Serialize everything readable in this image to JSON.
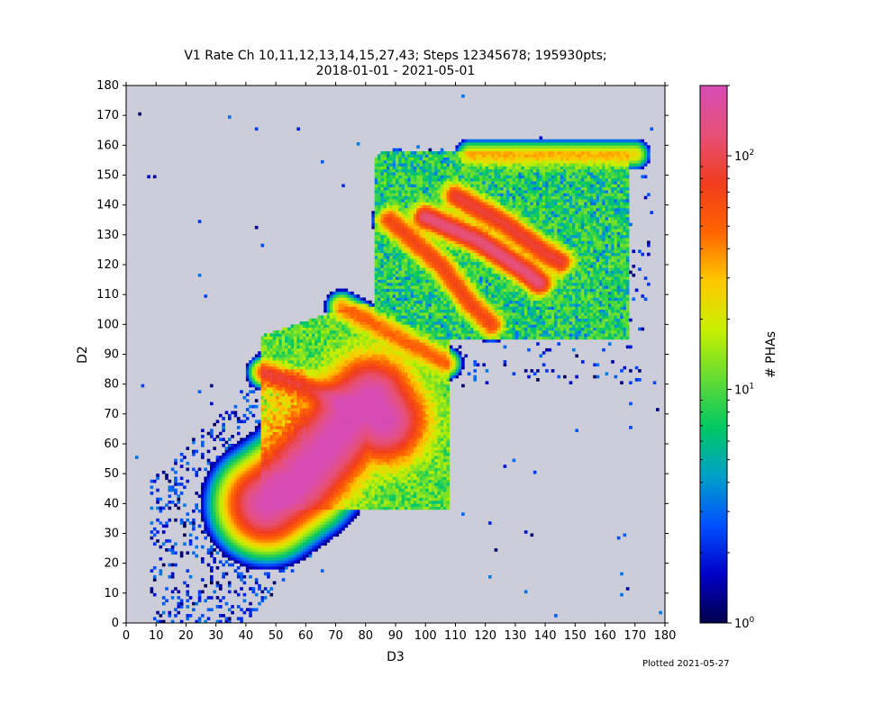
{
  "chart_data": {
    "type": "heatmap",
    "title_line1": "V1 Rate Ch 10,11,12,13,14,15,27,43; Steps 12345678; 195930pts;",
    "title_line2": "2018-01-01 - 2021-05-01",
    "xlabel": "D3",
    "ylabel": "D2",
    "xlim": [
      0,
      180
    ],
    "ylim": [
      0,
      180
    ],
    "xticks": [
      0,
      10,
      20,
      30,
      40,
      50,
      60,
      70,
      80,
      90,
      100,
      110,
      120,
      130,
      140,
      150,
      160,
      170,
      180
    ],
    "yticks": [
      0,
      10,
      20,
      30,
      40,
      50,
      60,
      70,
      80,
      90,
      100,
      110,
      120,
      130,
      140,
      150,
      160,
      170,
      180
    ],
    "background_color": "#cccdd9",
    "colorbar": {
      "label": "# PHAs",
      "scale": "log",
      "range": [
        1,
        200
      ],
      "ticks": [
        {
          "value": 1,
          "base": "10",
          "exp": "0"
        },
        {
          "value": 10,
          "base": "10",
          "exp": "1"
        },
        {
          "value": 100,
          "base": "10",
          "exp": "2"
        }
      ],
      "colormap": [
        "#00004b",
        "#0000c8",
        "#0050ff",
        "#00a0c8",
        "#00c864",
        "#64dc32",
        "#c8f000",
        "#ffc800",
        "#ff6400",
        "#f03c1e",
        "#e65078",
        "#d74bb4"
      ]
    },
    "features": [
      {
        "name": "main track",
        "points": [
          [
            47,
            40
          ],
          [
            58,
            48
          ],
          [
            68,
            60
          ],
          [
            76,
            70
          ],
          [
            82,
            75
          ],
          [
            86,
            68
          ]
        ],
        "peak_count": 200
      },
      {
        "name": "lower band",
        "points": [
          [
            46,
            84
          ],
          [
            60,
            79
          ],
          [
            72,
            74
          ],
          [
            82,
            70
          ]
        ],
        "peak_count": 60
      },
      {
        "name": "middle band",
        "points": [
          [
            72,
            106
          ],
          [
            85,
            99
          ],
          [
            98,
            92
          ],
          [
            107,
            87
          ]
        ],
        "peak_count": 40
      },
      {
        "name": "upper band 1",
        "points": [
          [
            88,
            135
          ],
          [
            105,
            120
          ],
          [
            115,
            107
          ],
          [
            122,
            100
          ]
        ],
        "peak_count": 60
      },
      {
        "name": "upper band 2",
        "points": [
          [
            100,
            136
          ],
          [
            118,
            128
          ],
          [
            133,
            118
          ],
          [
            138,
            114
          ]
        ],
        "peak_count": 120
      },
      {
        "name": "upper band 3",
        "points": [
          [
            110,
            143
          ],
          [
            126,
            134
          ],
          [
            140,
            124
          ],
          [
            145,
            121
          ]
        ],
        "peak_count": 80
      },
      {
        "name": "top edge",
        "points": [
          [
            115,
            157
          ],
          [
            170,
            157
          ]
        ],
        "peak_count": 25
      }
    ]
  },
  "footer": {
    "plotted": "Plotted 2021-05-27"
  }
}
